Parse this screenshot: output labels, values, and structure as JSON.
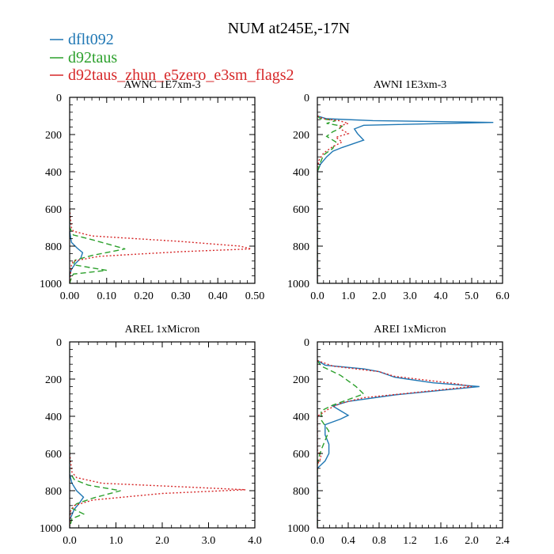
{
  "title": "NUM at245E,-17N",
  "legend": [
    {
      "name": "dflt092",
      "color": "#1f77b4",
      "dash": "solid"
    },
    {
      "name": "d92taus",
      "color": "#2ca02c",
      "dash": "dashed"
    },
    {
      "name": "d92taus_zhun_e5zero_e3sm_flags2",
      "color": "#d62728",
      "dash": "dotted"
    }
  ],
  "chart_data": [
    {
      "type": "line",
      "title": "AWNC  1E7xm-3",
      "xlim": [
        0,
        0.5
      ],
      "ylim": [
        1000,
        0
      ],
      "xticks": [
        0,
        0.1,
        0.2,
        0.3,
        0.4,
        0.5
      ],
      "xtick_labels": [
        "0.00",
        "0.10",
        "0.20",
        "0.30",
        "0.40",
        "0.50"
      ],
      "yticks": [
        0,
        200,
        400,
        600,
        800,
        1000
      ],
      "ytick_labels": [
        "0",
        "200",
        "400",
        "600",
        "800",
        "1000"
      ],
      "series": [
        {
          "name": "dflt092",
          "points": [
            [
              0,
              600
            ],
            [
              0,
              720
            ],
            [
              0.005,
              780
            ],
            [
              0.02,
              810
            ],
            [
              0.035,
              835
            ],
            [
              0.03,
              865
            ],
            [
              0.015,
              895
            ],
            [
              0.005,
              925
            ],
            [
              0,
              955
            ],
            [
              0,
              1000
            ]
          ]
        },
        {
          "name": "d92taus",
          "points": [
            [
              0,
              600
            ],
            [
              0,
              700
            ],
            [
              0.01,
              740
            ],
            [
              0.06,
              765
            ],
            [
              0.15,
              815
            ],
            [
              0.06,
              850
            ],
            [
              0.015,
              875
            ],
            [
              0.01,
              900
            ],
            [
              0.1,
              930
            ],
            [
              0.01,
              950
            ],
            [
              0.005,
              970
            ],
            [
              0,
              1000
            ]
          ]
        },
        {
          "name": "d92taus_zhun_e5zero_e3sm_flags2",
          "points": [
            [
              0,
              600
            ],
            [
              0.005,
              700
            ],
            [
              0.01,
              720
            ],
            [
              0.06,
              745
            ],
            [
              0.3,
              775
            ],
            [
              0.46,
              800
            ],
            [
              0.49,
              815
            ],
            [
              0.3,
              830
            ],
            [
              0.08,
              855
            ],
            [
              0.01,
              880
            ],
            [
              0.005,
              900
            ],
            [
              0,
              1000
            ]
          ]
        }
      ]
    },
    {
      "type": "line",
      "title": "AWNI  1E3xm-3",
      "xlim": [
        0,
        6
      ],
      "ylim": [
        1000,
        0
      ],
      "xticks": [
        0,
        1,
        2,
        3,
        4,
        5,
        6
      ],
      "xtick_labels": [
        "0.0",
        "1.0",
        "2.0",
        "3.0",
        "4.0",
        "5.0",
        "6.0"
      ],
      "yticks": [
        0,
        200,
        400,
        600,
        800,
        1000
      ],
      "ytick_labels": [
        "0",
        "200",
        "400",
        "600",
        "800",
        "1000"
      ],
      "series": [
        {
          "name": "dflt092",
          "points": [
            [
              0,
              100
            ],
            [
              0.3,
              115
            ],
            [
              1.8,
              125
            ],
            [
              5.7,
              135
            ],
            [
              1.5,
              150
            ],
            [
              1.2,
              170
            ],
            [
              1.3,
              195
            ],
            [
              1.5,
              230
            ],
            [
              0.8,
              270
            ],
            [
              0.5,
              290
            ],
            [
              0.3,
              320
            ],
            [
              0.1,
              360
            ],
            [
              0,
              400
            ],
            [
              0,
              1000
            ]
          ]
        },
        {
          "name": "d92taus",
          "points": [
            [
              0,
              100
            ],
            [
              0.1,
              115
            ],
            [
              0.6,
              125
            ],
            [
              0.3,
              140
            ],
            [
              0.8,
              155
            ],
            [
              0.7,
              170
            ],
            [
              0.5,
              185
            ],
            [
              0.3,
              210
            ],
            [
              0.6,
              240
            ],
            [
              0.5,
              275
            ],
            [
              0.2,
              310
            ],
            [
              0.1,
              350
            ],
            [
              0,
              400
            ],
            [
              0,
              1000
            ]
          ]
        },
        {
          "name": "d92taus_zhun_e5zero_e3sm_flags2",
          "points": [
            [
              0,
              100
            ],
            [
              0.2,
              115
            ],
            [
              0.7,
              125
            ],
            [
              1.0,
              140
            ],
            [
              0.7,
              155
            ],
            [
              0.8,
              175
            ],
            [
              1.0,
              195
            ],
            [
              0.6,
              215
            ],
            [
              0.8,
              240
            ],
            [
              0.5,
              265
            ],
            [
              0.2,
              300
            ],
            [
              0.05,
              340
            ],
            [
              0,
              380
            ],
            [
              0,
              1000
            ]
          ]
        }
      ]
    },
    {
      "type": "line",
      "title": "AREL  1xMicron",
      "xlim": [
        0,
        4
      ],
      "ylim": [
        1000,
        0
      ],
      "xticks": [
        0,
        1,
        2,
        3,
        4
      ],
      "xtick_labels": [
        "0.0",
        "1.0",
        "2.0",
        "3.0",
        "4.0"
      ],
      "yticks": [
        0,
        200,
        400,
        600,
        800,
        1000
      ],
      "ytick_labels": [
        "0",
        "200",
        "400",
        "600",
        "800",
        "1000"
      ],
      "series": [
        {
          "name": "dflt092",
          "points": [
            [
              0,
              600
            ],
            [
              0,
              710
            ],
            [
              0.05,
              760
            ],
            [
              0.15,
              800
            ],
            [
              0.3,
              835
            ],
            [
              0.2,
              870
            ],
            [
              0.1,
              900
            ],
            [
              0.05,
              930
            ],
            [
              0,
              960
            ],
            [
              0,
              1000
            ]
          ]
        },
        {
          "name": "d92taus",
          "points": [
            [
              0,
              440
            ],
            [
              0,
              700
            ],
            [
              0.1,
              740
            ],
            [
              0.4,
              770
            ],
            [
              1.1,
              800
            ],
            [
              0.5,
              840
            ],
            [
              0.15,
              870
            ],
            [
              0.05,
              895
            ],
            [
              0.3,
              925
            ],
            [
              0.05,
              950
            ],
            [
              0,
              1000
            ]
          ]
        },
        {
          "name": "d92taus_zhun_e5zero_e3sm_flags2",
          "points": [
            [
              0,
              600
            ],
            [
              0.05,
              700
            ],
            [
              0.15,
              730
            ],
            [
              0.7,
              760
            ],
            [
              2.5,
              780
            ],
            [
              3.8,
              795
            ],
            [
              2.0,
              815
            ],
            [
              0.5,
              850
            ],
            [
              0.1,
              880
            ],
            [
              0.02,
              910
            ],
            [
              0,
              1000
            ]
          ]
        }
      ]
    },
    {
      "type": "line",
      "title": "AREI  1xMicron",
      "xlim": [
        0,
        2.4
      ],
      "ylim": [
        1000,
        0
      ],
      "xticks": [
        0,
        0.4,
        0.8,
        1.2,
        1.6,
        2.0,
        2.4
      ],
      "xtick_labels": [
        "0.0",
        "0.4",
        "0.8",
        "1.2",
        "1.6",
        "2.0",
        "2.4"
      ],
      "yticks": [
        0,
        200,
        400,
        600,
        800,
        1000
      ],
      "ytick_labels": [
        "0",
        "200",
        "400",
        "600",
        "800",
        "1000"
      ],
      "series": [
        {
          "name": "dflt092",
          "points": [
            [
              0,
              100
            ],
            [
              0.1,
              125
            ],
            [
              0.6,
              145
            ],
            [
              0.8,
              160
            ],
            [
              1.0,
              190
            ],
            [
              1.5,
              220
            ],
            [
              2.1,
              240
            ],
            [
              1.0,
              285
            ],
            [
              0.4,
              320
            ],
            [
              0.2,
              345
            ],
            [
              0.3,
              370
            ],
            [
              0.4,
              395
            ],
            [
              0.3,
              415
            ],
            [
              0.1,
              445
            ],
            [
              0.1,
              500
            ],
            [
              0.15,
              550
            ],
            [
              0.15,
              600
            ],
            [
              0.1,
              640
            ],
            [
              0,
              680
            ],
            [
              0,
              1000
            ]
          ]
        },
        {
          "name": "d92taus",
          "points": [
            [
              0,
              100
            ],
            [
              0.05,
              130
            ],
            [
              0.3,
              180
            ],
            [
              0.5,
              240
            ],
            [
              0.6,
              280
            ],
            [
              0.4,
              310
            ],
            [
              0.2,
              340
            ],
            [
              0.05,
              370
            ],
            [
              0.05,
              420
            ],
            [
              0.15,
              480
            ],
            [
              0.1,
              530
            ],
            [
              0.05,
              580
            ],
            [
              0.02,
              620
            ],
            [
              0,
              660
            ],
            [
              0,
              1000
            ]
          ]
        },
        {
          "name": "d92taus_zhun_e5zero_e3sm_flags2",
          "points": [
            [
              0,
              100
            ],
            [
              0.2,
              130
            ],
            [
              0.8,
              160
            ],
            [
              1.0,
              185
            ],
            [
              1.8,
              225
            ],
            [
              2.0,
              240
            ],
            [
              1.2,
              275
            ],
            [
              0.6,
              300
            ],
            [
              0.3,
              330
            ],
            [
              0.15,
              360
            ],
            [
              0,
              400
            ],
            [
              0,
              520
            ],
            [
              0,
              580
            ],
            [
              0.05,
              620
            ],
            [
              0,
              660
            ],
            [
              0,
              1000
            ]
          ]
        }
      ]
    }
  ]
}
